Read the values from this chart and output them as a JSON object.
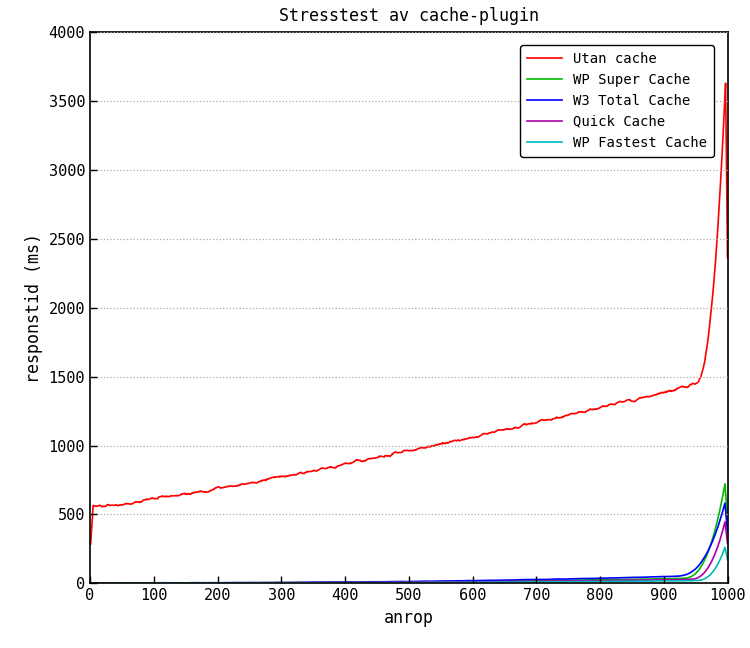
{
  "title": "Stresstest av cache-plugin",
  "xlabel": "anrop",
  "ylabel": "responstid (ms)",
  "xlim": [
    0,
    1000
  ],
  "ylim": [
    0,
    4000
  ],
  "xticks": [
    0,
    100,
    200,
    300,
    400,
    500,
    600,
    700,
    800,
    900,
    1000
  ],
  "yticks": [
    0,
    500,
    1000,
    1500,
    2000,
    2500,
    3000,
    3500,
    4000
  ],
  "series": {
    "Utan cache": {
      "color": "#ff0000",
      "lw": 1.2
    },
    "WP Super Cache": {
      "color": "#00bb00",
      "lw": 1.2
    },
    "W3 Total Cache": {
      "color": "#0000ff",
      "lw": 1.2
    },
    "Quick Cache": {
      "color": "#aa00aa",
      "lw": 1.2
    },
    "WP Fastest Cache": {
      "color": "#00bbbb",
      "lw": 1.2
    }
  },
  "grid_color": "#aaaaaa",
  "grid_style": ":",
  "grid_alpha": 1.0,
  "bg_color": "#ffffff",
  "n_points": 1000
}
